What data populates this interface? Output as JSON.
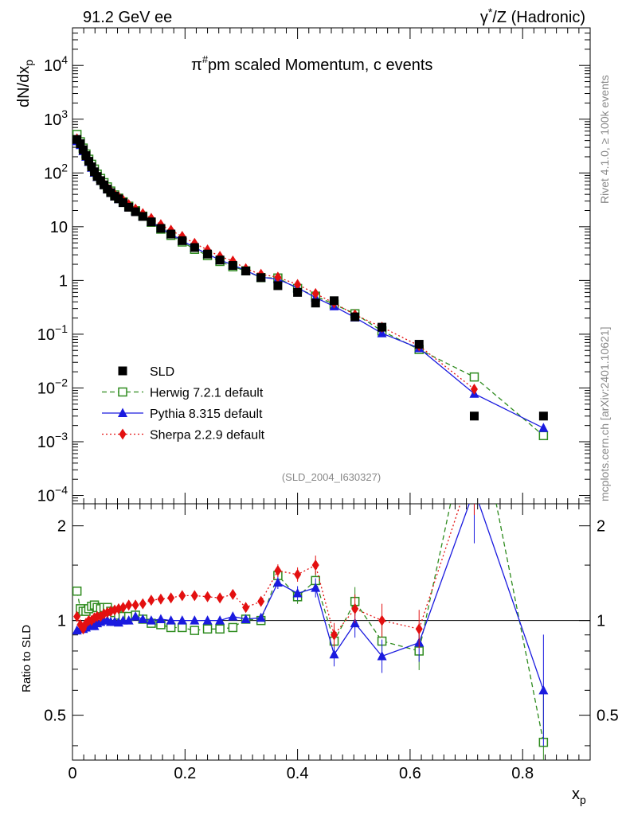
{
  "header": {
    "left": "91.2 GeV ee",
    "right_main": "γ",
    "right_sup": "*",
    "right_rest": "/Z (Hadronic)"
  },
  "side_labels": {
    "top": "Rivet 4.1.0, ≥ 100k events",
    "bottom": "mcplots.cern.ch [arXiv:2401.10621]"
  },
  "chart_data": {
    "type": "line",
    "title": "π#pm scaled Momentum, c events",
    "title_parts": {
      "pre": "π",
      "sup": "#",
      "post": "pm scaled Momentum, c events"
    },
    "watermark": "(SLD_2004_I630327)",
    "ylabel": "dN/dx",
    "ylabel_sub": "p",
    "xlabel": "x",
    "xlabel_sub": "p",
    "ratio_ylabel": "Ratio to SLD",
    "xlim": [
      0,
      0.92
    ],
    "ylim": [
      7e-05,
      50000
    ],
    "ratio_ylim": [
      0.36,
      2.35
    ],
    "x_ticks": [
      "0",
      "0.2",
      "0.4",
      "0.6",
      "0.8"
    ],
    "y_ticks": [
      {
        "base": "10",
        "exp": "4"
      },
      {
        "base": "10",
        "exp": "3"
      },
      {
        "base": "10",
        "exp": "2"
      },
      {
        "base": "10",
        "exp": ""
      },
      {
        "base": "1",
        "exp": ""
      },
      {
        "base": "10",
        "exp": "−1"
      },
      {
        "base": "10",
        "exp": "−2"
      },
      {
        "base": "10",
        "exp": "−3"
      },
      {
        "base": "10",
        "exp": "−4"
      }
    ],
    "ratio_ticks": [
      "2",
      "1",
      "0.5"
    ],
    "legend": [
      "SLD",
      "Herwig 7.2.1 default",
      "Pythia 8.315 default",
      "Sherpa 2.2.9 default"
    ],
    "series": [
      {
        "name": "SLD",
        "color": "#000000",
        "marker": "square",
        "x": [
          0.008,
          0.014,
          0.019,
          0.024,
          0.029,
          0.034,
          0.039,
          0.044,
          0.05,
          0.056,
          0.062,
          0.068,
          0.075,
          0.082,
          0.09,
          0.1,
          0.112,
          0.125,
          0.14,
          0.157,
          0.175,
          0.195,
          0.217,
          0.24,
          0.262,
          0.285,
          0.308,
          0.335,
          0.365,
          0.4,
          0.432,
          0.465,
          0.502,
          0.55,
          0.616,
          0.714,
          0.837
        ],
        "values": [
          420,
          350,
          270,
          210,
          165,
          130,
          105,
          86,
          72,
          60,
          50,
          43,
          37,
          33,
          28,
          23,
          19,
          15.5,
          12.3,
          9.3,
          7.3,
          5.5,
          4.1,
          3.1,
          2.4,
          1.9,
          1.5,
          1.13,
          0.8,
          0.6,
          0.38,
          0.42,
          0.21,
          0.135,
          0.065,
          0.003,
          0.003
        ]
      },
      {
        "name": "Herwig 7.2.1 default",
        "color": "#2e8b1e",
        "marker": "open-square",
        "dash": "6,4",
        "x": [
          0.008,
          0.014,
          0.019,
          0.024,
          0.029,
          0.034,
          0.039,
          0.044,
          0.05,
          0.056,
          0.062,
          0.068,
          0.075,
          0.082,
          0.09,
          0.1,
          0.112,
          0.125,
          0.14,
          0.157,
          0.175,
          0.195,
          0.217,
          0.24,
          0.262,
          0.285,
          0.308,
          0.335,
          0.365,
          0.4,
          0.432,
          0.465,
          0.502,
          0.55,
          0.616,
          0.714,
          0.837
        ],
        "values": [
          520,
          380,
          290,
          225,
          180,
          145,
          118,
          95,
          79,
          66,
          55,
          46,
          39,
          34,
          29,
          24,
          19.8,
          15.7,
          12.1,
          9.0,
          6.9,
          5.2,
          3.8,
          2.9,
          2.26,
          1.8,
          1.51,
          1.13,
          1.11,
          0.71,
          0.51,
          0.36,
          0.24,
          0.115,
          0.052,
          0.016,
          0.0013
        ]
      },
      {
        "name": "Pythia 8.315 default",
        "color": "#1a1adf",
        "marker": "triangle",
        "x": [
          0.008,
          0.014,
          0.019,
          0.024,
          0.029,
          0.034,
          0.039,
          0.044,
          0.05,
          0.056,
          0.062,
          0.068,
          0.075,
          0.082,
          0.09,
          0.1,
          0.112,
          0.125,
          0.14,
          0.157,
          0.175,
          0.195,
          0.217,
          0.24,
          0.262,
          0.285,
          0.308,
          0.335,
          0.365,
          0.4,
          0.432,
          0.465,
          0.502,
          0.55,
          0.616,
          0.714,
          0.837
        ],
        "values": [
          390,
          330,
          255,
          200,
          160,
          125,
          101,
          84,
          71,
          60,
          50,
          42.5,
          36.5,
          32.5,
          28,
          23,
          19.5,
          15.6,
          12.3,
          9.4,
          7.3,
          5.5,
          4.1,
          3.1,
          2.4,
          1.95,
          1.52,
          1.15,
          1.06,
          0.73,
          0.48,
          0.33,
          0.205,
          0.104,
          0.055,
          0.0078,
          0.0018
        ]
      },
      {
        "name": "Sherpa 2.2.9 default",
        "color": "#e31010",
        "marker": "diamond",
        "dash": "2,3",
        "x": [
          0.008,
          0.014,
          0.019,
          0.024,
          0.029,
          0.034,
          0.039,
          0.044,
          0.05,
          0.056,
          0.062,
          0.068,
          0.075,
          0.082,
          0.09,
          0.1,
          0.112,
          0.125,
          0.14,
          0.157,
          0.175,
          0.195,
          0.217,
          0.24,
          0.262,
          0.285,
          0.308,
          0.335,
          0.365,
          0.4,
          0.432,
          0.465,
          0.502,
          0.55,
          0.616,
          0.714
        ],
        "values": [
          430,
          340,
          255,
          205,
          165,
          130,
          107,
          88,
          74,
          63,
          53,
          46,
          40,
          36,
          31,
          25.7,
          21.3,
          17.5,
          14.3,
          10.9,
          8.6,
          6.6,
          4.9,
          3.7,
          2.8,
          2.3,
          1.65,
          1.3,
          1.15,
          0.84,
          0.57,
          0.38,
          0.23,
          0.135,
          0.061,
          0.0095
        ]
      }
    ],
    "ratios": {
      "x": [
        0.008,
        0.014,
        0.019,
        0.024,
        0.029,
        0.034,
        0.039,
        0.044,
        0.05,
        0.056,
        0.062,
        0.068,
        0.075,
        0.082,
        0.09,
        0.1,
        0.112,
        0.125,
        0.14,
        0.157,
        0.175,
        0.195,
        0.217,
        0.24,
        0.262,
        0.285,
        0.308,
        0.335,
        0.365,
        0.4,
        0.432,
        0.465,
        0.502,
        0.55,
        0.616,
        0.714,
        0.837
      ],
      "Herwig 7.2.1 default": [
        1.24,
        1.09,
        1.07,
        1.07,
        1.09,
        1.11,
        1.12,
        1.1,
        1.09,
        1.1,
        1.1,
        1.07,
        1.06,
        1.04,
        1.03,
        1.03,
        1.04,
        1.01,
        0.98,
        0.97,
        0.95,
        0.95,
        0.93,
        0.94,
        0.94,
        0.95,
        1.01,
        1.0,
        1.39,
        1.19,
        1.34,
        0.86,
        1.15,
        0.86,
        0.8,
        5.3,
        0.41
      ],
      "Pythia 8.315 default": [
        0.93,
        0.94,
        0.94,
        0.95,
        0.97,
        0.96,
        0.96,
        0.98,
        0.99,
        1.0,
        1.0,
        0.99,
        0.99,
        0.985,
        1.0,
        1.0,
        1.03,
        1.01,
        1.0,
        1.01,
        1.0,
        1.0,
        1.0,
        1.0,
        1.0,
        1.03,
        1.01,
        1.02,
        1.32,
        1.22,
        1.27,
        0.78,
        0.98,
        0.77,
        0.85,
        2.6,
        0.6
      ],
      "Sherpa 2.2.9 default": [
        1.03,
        0.97,
        0.94,
        0.98,
        1.0,
        1.0,
        1.02,
        1.03,
        1.03,
        1.05,
        1.06,
        1.07,
        1.08,
        1.09,
        1.1,
        1.12,
        1.12,
        1.13,
        1.16,
        1.17,
        1.18,
        1.2,
        1.2,
        1.19,
        1.18,
        1.21,
        1.1,
        1.15,
        1.44,
        1.4,
        1.5,
        0.9,
        1.09,
        1.0,
        0.94,
        3.2
      ]
    }
  }
}
